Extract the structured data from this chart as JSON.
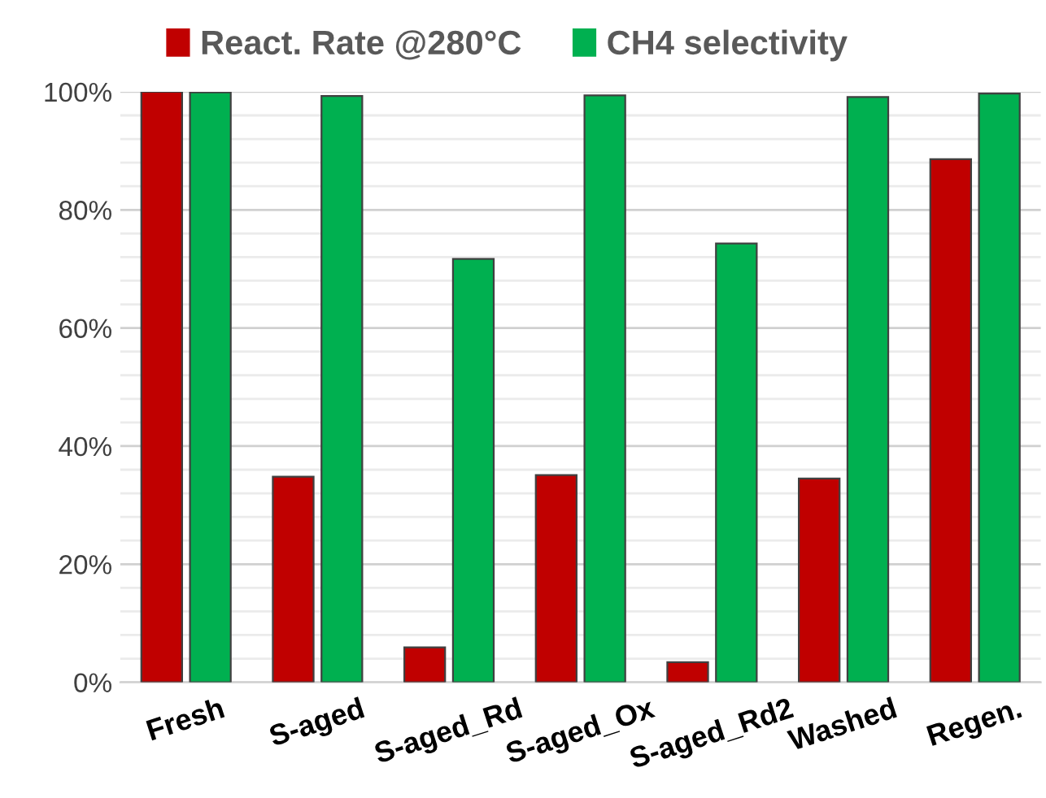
{
  "chart_data": {
    "type": "bar",
    "categories": [
      "Fresh",
      "S-aged",
      "S-aged_Rd",
      "S-aged_Ox",
      "S-aged_Rd2",
      "Washed",
      "Regen."
    ],
    "series": [
      {
        "name": "React. Rate @280°C",
        "color": "#c00000",
        "values": [
          100,
          34.8,
          5.9,
          35.1,
          3.4,
          34.5,
          88.6
        ]
      },
      {
        "name": "CH4 selectivity",
        "color": "#00b050",
        "values": [
          99.9,
          99.3,
          71.7,
          99.4,
          74.3,
          99.1,
          99.7
        ]
      }
    ],
    "ylim": [
      0,
      100
    ],
    "yticks": [
      {
        "value": 0,
        "label": "0%"
      },
      {
        "value": 4,
        "label": null
      },
      {
        "value": 8,
        "label": null
      },
      {
        "value": 12,
        "label": null
      },
      {
        "value": 16,
        "label": null
      },
      {
        "value": 20,
        "label": "20%"
      },
      {
        "value": 24,
        "label": null
      },
      {
        "value": 28,
        "label": null
      },
      {
        "value": 32,
        "label": null
      },
      {
        "value": 36,
        "label": null
      },
      {
        "value": 40,
        "label": "40%"
      },
      {
        "value": 44,
        "label": null
      },
      {
        "value": 48,
        "label": null
      },
      {
        "value": 52,
        "label": null
      },
      {
        "value": 56,
        "label": null
      },
      {
        "value": 60,
        "label": "60%"
      },
      {
        "value": 64,
        "label": null
      },
      {
        "value": 68,
        "label": null
      },
      {
        "value": 72,
        "label": null
      },
      {
        "value": 76,
        "label": null
      },
      {
        "value": 80,
        "label": "80%"
      },
      {
        "value": 84,
        "label": null
      },
      {
        "value": 88,
        "label": null
      },
      {
        "value": 92,
        "label": null
      },
      {
        "value": 96,
        "label": null
      },
      {
        "value": 100,
        "label": "100%"
      }
    ],
    "grid": "y",
    "legend": "top"
  }
}
